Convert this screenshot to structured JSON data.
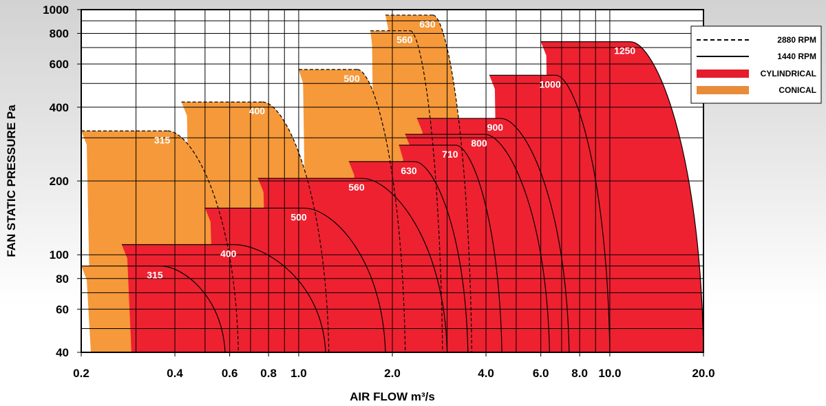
{
  "chart_data": {
    "type": "area",
    "xlabel": "AIR FLOW m³/s",
    "ylabel": "FAN STATIC PRESSURE Pa",
    "x_scale": "log",
    "y_scale": "log",
    "xlim": [
      0.2,
      20.0
    ],
    "ylim": [
      40,
      1000
    ],
    "x_ticks": [
      "0.2",
      "0.4",
      "0.6",
      "0.8",
      "1.0",
      "2.0",
      "4.0",
      "6.0",
      "8.0",
      "10.0",
      "20.0"
    ],
    "x_tick_values": [
      0.2,
      0.4,
      0.6,
      0.8,
      1.0,
      2.0,
      4.0,
      6.0,
      8.0,
      10.0,
      20.0
    ],
    "y_ticks": [
      "40",
      "60",
      "80",
      "100",
      "200",
      "400",
      "600",
      "800",
      "1000"
    ],
    "y_tick_values": [
      40,
      60,
      80,
      100,
      200,
      400,
      600,
      800,
      1000
    ],
    "grid": true,
    "legend": {
      "position": "top-right",
      "entries": [
        {
          "label": "2880 RPM",
          "style": "dashed-line"
        },
        {
          "label": "1440 RPM",
          "style": "solid-line"
        },
        {
          "label": "CYLINDRICAL",
          "style": "fill",
          "color": "#e41e2d"
        },
        {
          "label": "CONICAL",
          "style": "fill",
          "color": "#e88c3a"
        }
      ]
    },
    "colors": {
      "cylindrical": "#ee2130",
      "conical": "#f5993a"
    },
    "series": [
      {
        "name": "315",
        "type": "CONICAL",
        "speed": "2880 RPM",
        "flow_range": [
          0.2,
          0.64
        ],
        "max_pressure": 320,
        "label": "315"
      },
      {
        "name": "400",
        "type": "CONICAL",
        "speed": "2880 RPM",
        "flow_range": [
          0.42,
          1.25
        ],
        "max_pressure": 420,
        "label": "400"
      },
      {
        "name": "500",
        "type": "CONICAL",
        "speed": "2880 RPM",
        "flow_range": [
          1.0,
          2.2
        ],
        "max_pressure": 570,
        "label": "500"
      },
      {
        "name": "560",
        "type": "CONICAL",
        "speed": "2880 RPM",
        "flow_range": [
          1.7,
          2.9
        ],
        "max_pressure": 820,
        "label": "560"
      },
      {
        "name": "630",
        "type": "CONICAL",
        "speed": "2880 RPM",
        "flow_range": [
          1.9,
          3.6
        ],
        "max_pressure": 950,
        "label": "630"
      },
      {
        "name": "315",
        "type": "CONICAL",
        "speed": "1440 RPM",
        "flow_range": [
          0.2,
          0.58
        ],
        "max_pressure": 90,
        "label": "315"
      },
      {
        "name": "400",
        "type": "CYLINDRICAL",
        "speed": "1440 RPM",
        "flow_range": [
          0.27,
          1.22
        ],
        "max_pressure": 110,
        "label": "400"
      },
      {
        "name": "500",
        "type": "CYLINDRICAL",
        "speed": "1440 RPM",
        "flow_range": [
          0.5,
          1.9
        ],
        "max_pressure": 155,
        "label": "500"
      },
      {
        "name": "560",
        "type": "CYLINDRICAL",
        "speed": "1440 RPM",
        "flow_range": [
          0.74,
          3.0
        ],
        "max_pressure": 205,
        "label": "560"
      },
      {
        "name": "630",
        "type": "CYLINDRICAL",
        "speed": "1440 RPM",
        "flow_range": [
          1.45,
          3.5
        ],
        "max_pressure": 240,
        "label": "630"
      },
      {
        "name": "710",
        "type": "CYLINDRICAL",
        "speed": "1440 RPM",
        "flow_range": [
          2.1,
          4.5
        ],
        "max_pressure": 280,
        "label": "710"
      },
      {
        "name": "800",
        "type": "CYLINDRICAL",
        "speed": "1440 RPM",
        "flow_range": [
          2.2,
          6.4
        ],
        "max_pressure": 310,
        "label": "800"
      },
      {
        "name": "900",
        "type": "CYLINDRICAL",
        "speed": "1440 RPM",
        "flow_range": [
          2.4,
          7.4
        ],
        "max_pressure": 360,
        "label": "900"
      },
      {
        "name": "1000",
        "type": "CYLINDRICAL",
        "speed": "1440 RPM",
        "flow_range": [
          4.1,
          10.0
        ],
        "max_pressure": 540,
        "label": "1000"
      },
      {
        "name": "1250",
        "type": "CYLINDRICAL",
        "speed": "1440 RPM",
        "flow_range": [
          6.0,
          20.0
        ],
        "max_pressure": 740,
        "label": "1250"
      }
    ]
  }
}
